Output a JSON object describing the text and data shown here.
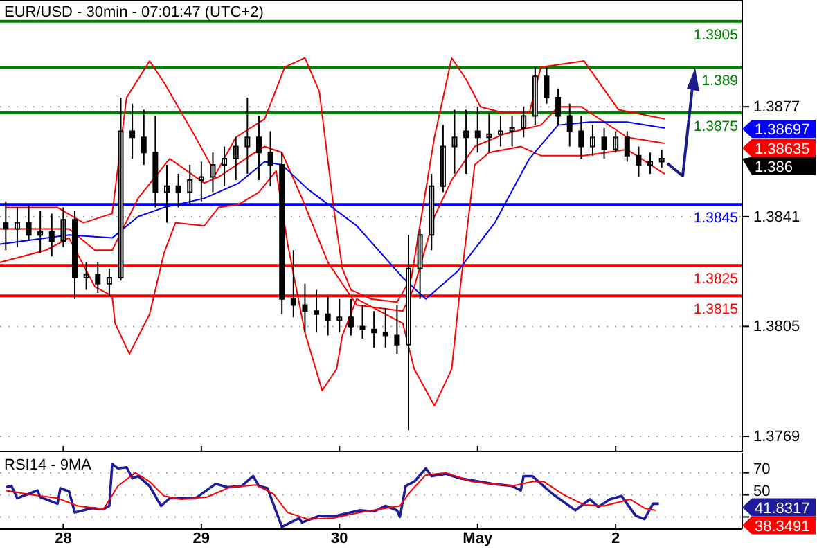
{
  "chart_data": [
    {
      "type": "candlestick",
      "title": "EUR/USD - 30min - 07:01:47 (UTC+2)",
      "grid": "y",
      "tick_labels": "y",
      "xlim": [
        "--04-27T13:00",
        "--05-02T22:00"
      ],
      "xticks": [
        {
          "value": "--04-28",
          "label": null
        },
        {
          "value": "--04-29",
          "label": null
        },
        {
          "value": "--04-30",
          "label": null
        },
        {
          "value": "--05-01",
          "label": null
        },
        {
          "value": "--05-02",
          "label": null
        }
      ],
      "ylim": [
        1.3764,
        1.3912
      ],
      "yticks": [
        1.3769,
        1.3805,
        1.3841,
        1.3877,
        1.38697,
        1.38635,
        1.386
      ],
      "x": [
        "--04-27T14:00",
        "--04-27T16:00",
        "--04-27T18:00",
        "--04-27T20:00",
        "--04-27T22:00",
        "--04-28T00:00",
        "--04-28T02:00",
        "--04-28T04:00",
        "--04-28T06:00",
        "--04-28T08:00",
        "--04-28T10:00",
        "--04-28T12:00",
        "--04-28T14:00",
        "--04-28T16:00",
        "--04-28T18:00",
        "--04-28T20:00",
        "--04-28T22:00",
        "--04-29T00:00",
        "--04-29T02:00",
        "--04-29T04:00",
        "--04-29T06:00",
        "--04-29T08:00",
        "--04-29T10:00",
        "--04-29T12:00",
        "--04-29T14:00",
        "--04-29T16:00",
        "--04-29T18:00",
        "--04-29T20:00",
        "--04-29T22:00",
        "--04-30T00:00",
        "--04-30T02:00",
        "--04-30T04:00",
        "--04-30T06:00",
        "--04-30T08:00",
        "--04-30T10:00",
        "--04-30T12:00",
        "--04-30T14:00",
        "--04-30T16:00",
        "--04-30T18:00",
        "--04-30T20:00",
        "--04-30T22:00",
        "--05-01T00:00",
        "--05-01T02:00",
        "--05-01T04:00",
        "--05-01T06:00",
        "--05-01T08:00",
        "--05-01T10:00",
        "--05-01T12:00",
        "--05-01T14:00",
        "--05-01T16:00",
        "--05-01T18:00",
        "--05-01T20:00",
        "--05-01T22:00",
        "--05-02T00:00",
        "--05-02T02:00",
        "--05-02T04:00",
        "--05-02T06:00",
        "--05-02T08:00"
      ],
      "ohlc": [
        [
          1.3839,
          1.3846,
          1.383,
          1.3837
        ],
        [
          1.3837,
          1.3844,
          1.3831,
          1.3839
        ],
        [
          1.3839,
          1.3845,
          1.3833,
          1.3835
        ],
        [
          1.3835,
          1.3843,
          1.3829,
          1.3836
        ],
        [
          1.3836,
          1.3842,
          1.3828,
          1.3833
        ],
        [
          1.3833,
          1.3844,
          1.3831,
          1.384
        ],
        [
          1.384,
          1.3843,
          1.3814,
          1.3821
        ],
        [
          1.3821,
          1.3826,
          1.3817,
          1.3822
        ],
        [
          1.3822,
          1.3826,
          1.3816,
          1.3819
        ],
        [
          1.3819,
          1.3824,
          1.3815,
          1.3821
        ],
        [
          1.3821,
          1.388,
          1.382,
          1.3869
        ],
        [
          1.3869,
          1.3878,
          1.386,
          1.3867
        ],
        [
          1.3867,
          1.3876,
          1.3858,
          1.3862
        ],
        [
          1.3862,
          1.3874,
          1.3844,
          1.3849
        ],
        [
          1.3849,
          1.3858,
          1.3839,
          1.3851
        ],
        [
          1.3851,
          1.3855,
          1.3844,
          1.3849
        ],
        [
          1.3849,
          1.3858,
          1.3845,
          1.3853
        ],
        [
          1.3853,
          1.3859,
          1.3846,
          1.3854
        ],
        [
          1.3854,
          1.3862,
          1.3849,
          1.3858
        ],
        [
          1.3858,
          1.3864,
          1.3851,
          1.386
        ],
        [
          1.386,
          1.3867,
          1.3853,
          1.3864
        ],
        [
          1.3864,
          1.388,
          1.3855,
          1.3867
        ],
        [
          1.3867,
          1.3874,
          1.3853,
          1.3862
        ],
        [
          1.3862,
          1.3869,
          1.3851,
          1.3858
        ],
        [
          1.3858,
          1.3862,
          1.3809,
          1.3814
        ],
        [
          1.3814,
          1.383,
          1.3808,
          1.3812
        ],
        [
          1.3812,
          1.3819,
          1.3803,
          1.381
        ],
        [
          1.381,
          1.3817,
          1.3803,
          1.3809
        ],
        [
          1.3809,
          1.3815,
          1.3802,
          1.3807
        ],
        [
          1.3807,
          1.3814,
          1.3803,
          1.3808
        ],
        [
          1.3808,
          1.3814,
          1.3802,
          1.3805
        ],
        [
          1.3805,
          1.3812,
          1.3801,
          1.3804
        ],
        [
          1.3804,
          1.381,
          1.3798,
          1.3803
        ],
        [
          1.3803,
          1.3811,
          1.3798,
          1.3802
        ],
        [
          1.3802,
          1.3812,
          1.3796,
          1.3799
        ],
        [
          1.3799,
          1.3835,
          1.3771,
          1.3824
        ],
        [
          1.3824,
          1.3837,
          1.3814,
          1.3835
        ],
        [
          1.3835,
          1.3855,
          1.383,
          1.3851
        ],
        [
          1.3851,
          1.3871,
          1.3849,
          1.3864
        ],
        [
          1.3864,
          1.3876,
          1.3855,
          1.3867
        ],
        [
          1.3867,
          1.3876,
          1.3855,
          1.3869
        ],
        [
          1.3869,
          1.3877,
          1.3862,
          1.3867
        ],
        [
          1.3867,
          1.3875,
          1.3862,
          1.3868
        ],
        [
          1.3868,
          1.3874,
          1.3864,
          1.3869
        ],
        [
          1.3869,
          1.3874,
          1.3864,
          1.387
        ],
        [
          1.387,
          1.3877,
          1.3867,
          1.3874
        ],
        [
          1.3874,
          1.389,
          1.3871,
          1.3887
        ],
        [
          1.3887,
          1.389,
          1.3878,
          1.388
        ],
        [
          1.388,
          1.3883,
          1.3871,
          1.3874
        ],
        [
          1.3874,
          1.3878,
          1.3864,
          1.3869
        ],
        [
          1.3869,
          1.3874,
          1.386,
          1.3864
        ],
        [
          1.3864,
          1.3871,
          1.3861,
          1.3867
        ],
        [
          1.3867,
          1.387,
          1.386,
          1.3863
        ],
        [
          1.3863,
          1.3869,
          1.3862,
          1.3867
        ],
        [
          1.3867,
          1.3869,
          1.3859,
          1.3861
        ],
        [
          1.3861,
          1.3864,
          1.3854,
          1.3858
        ],
        [
          1.3858,
          1.3862,
          1.3855,
          1.3859
        ],
        [
          1.3859,
          1.3863,
          1.3857,
          1.386
        ]
      ],
      "series": [
        {
          "type": "line",
          "color": "#ff0000",
          "x": [
            "--04-27T14:00",
            "--04-27T23:00",
            "--04-28T03:30",
            "--04-28T08:30",
            "--04-28T11:00",
            "--04-28T15:00",
            "--04-28T17:30",
            "--04-28T23:00",
            "--04-29T02:30",
            "--04-29T06:00",
            "--04-29T11:00",
            "--04-29T14:30",
            "--04-29T18:00",
            "--04-29T20:30",
            "--04-29T23:00",
            "--04-30T00:30",
            "--04-30T02:00",
            "--04-30T05:30",
            "--04-30T10:00",
            "--04-30T12:30",
            "--04-30T16:30",
            "--04-30T19:30",
            "--04-30T22:00",
            "--05-01T00:30",
            "--05-01T04:30",
            "--05-01T09:00",
            "--05-01T11:00",
            "--05-01T18:30",
            "--05-02T00:30",
            "--05-02T08:30"
          ],
          "values": [
            1.3844,
            1.3844,
            1.3839,
            1.3842,
            1.388,
            1.3892,
            1.3885,
            1.3867,
            1.3855,
            1.3867,
            1.3873,
            1.389,
            1.3893,
            1.3882,
            1.3844,
            1.3824,
            1.3817,
            1.3814,
            1.3813,
            1.3821,
            1.3867,
            1.3893,
            1.3886,
            1.3877,
            1.3875,
            1.3875,
            1.389,
            1.3892,
            1.3876,
            1.3873
          ]
        },
        {
          "type": "line",
          "color": "#ff0000",
          "x": [
            "--04-27T13:00",
            "--04-28T01:00",
            "--04-28T05:30",
            "--04-28T08:30",
            "--04-28T13:00",
            "--04-28T18:30",
            "--04-29T00:30",
            "--04-29T03:00",
            "--04-29T08:30",
            "--04-29T11:00",
            "--04-29T14:00",
            "--04-29T17:30",
            "--04-29T22:00",
            "--04-30T03:00",
            "--04-30T11:00",
            "--04-30T13:00",
            "--04-30T16:30",
            "--04-30T19:30",
            "--04-30T23:30",
            "--05-01T04:30",
            "--05-01T11:00",
            "--05-01T14:00",
            "--05-01T18:00",
            "--05-02T02:00",
            "--05-02T08:30"
          ],
          "values": [
            1.3837,
            1.3837,
            1.383,
            1.383,
            1.3847,
            1.386,
            1.3852,
            1.3854,
            1.3861,
            1.3864,
            1.3862,
            1.3847,
            1.3826,
            1.3812,
            1.381,
            1.3818,
            1.3841,
            1.3853,
            1.3864,
            1.3868,
            1.3871,
            1.3877,
            1.3877,
            1.3867,
            1.3865
          ]
        },
        {
          "type": "line",
          "color": "#ff0000",
          "x": [
            "--04-27T13:00",
            "--04-27T21:00",
            "--04-28T01:00",
            "--04-28T05:30",
            "--04-28T08:30",
            "--04-28T09:00",
            "--04-28T11:30",
            "--04-28T15:00",
            "--04-28T17:30",
            "--04-28T19:30",
            "--04-29T00:30",
            "--04-29T03:00",
            "--04-29T06:30",
            "--04-29T10:00",
            "--04-29T13:00",
            "--04-29T15:00",
            "--04-29T18:00",
            "--04-29T21:00",
            "--04-29T23:30",
            "--04-30T00:30",
            "--04-30T03:00",
            "--04-30T11:00",
            "--04-30T13:00",
            "--04-30T16:30",
            "--04-30T19:30",
            "--04-30T21:00",
            "--04-30T23:30",
            "--05-01T02:00",
            "--05-01T07:30",
            "--05-01T11:00",
            "--05-01T18:30",
            "--05-02T02:00",
            "--05-02T08:30"
          ],
          "values": [
            1.3826,
            1.383,
            1.3834,
            1.3818,
            1.3815,
            1.3806,
            1.3796,
            1.3809,
            1.3829,
            1.3839,
            1.3838,
            1.3844,
            1.3845,
            1.3849,
            1.3856,
            1.3832,
            1.3803,
            1.3784,
            1.3791,
            1.3802,
            1.3814,
            1.3806,
            1.3791,
            1.3779,
            1.3791,
            1.3818,
            1.3858,
            1.3862,
            1.3864,
            1.3861,
            1.3861,
            1.3863,
            1.3855
          ]
        },
        {
          "type": "line",
          "color": "#0000ff",
          "x": [
            "--04-27T13:00",
            "--04-28T01:00",
            "--04-28T08:30",
            "--04-28T13:00",
            "--04-28T17:30",
            "--04-29T00:30",
            "--04-29T06:30",
            "--04-29T11:00",
            "--04-29T14:00",
            "--04-29T18:30",
            "--04-30T03:00",
            "--04-30T11:00",
            "--04-30T15:00",
            "--04-30T20:30",
            "--05-01T03:00",
            "--05-01T09:00",
            "--05-01T14:00",
            "--05-01T19:30",
            "--05-02T02:00",
            "--05-02T08:30"
          ],
          "values": [
            1.3832,
            1.3835,
            1.3834,
            1.3841,
            1.3844,
            1.3847,
            1.3852,
            1.3859,
            1.3858,
            1.385,
            1.3838,
            1.3821,
            1.3814,
            1.3823,
            1.3839,
            1.386,
            1.3871,
            1.3872,
            1.3872,
            1.387
          ]
        }
      ],
      "ref_lines": [
        {
          "axis": "y",
          "value": 1.3905,
          "label": "1.3905",
          "color": "#008000"
        },
        {
          "axis": "y",
          "value": 1.389,
          "label": "1.389",
          "color": "#008000"
        },
        {
          "axis": "y",
          "value": 1.3875,
          "label": "1.3875",
          "color": "#008000"
        },
        {
          "axis": "y",
          "value": 1.3845,
          "label": "1.3845",
          "color": "#0000ff"
        },
        {
          "axis": "y",
          "value": 1.3825,
          "label": "1.3825",
          "color": "#ff0000"
        },
        {
          "axis": "y",
          "value": 1.3815,
          "label": "1.3815",
          "color": "#ff0000"
        }
      ]
    },
    {
      "type": "line",
      "title": "RSI14 - 9MA",
      "grid": "y",
      "xlim": [
        "--04-27T13:00",
        "--05-02T22:00"
      ],
      "xticks": [
        {
          "value": "--04-28",
          "label": "28"
        },
        {
          "value": "--04-29",
          "label": "29"
        },
        {
          "value": "--04-30",
          "label": "30"
        },
        {
          "value": "--05-01",
          "label": "May"
        },
        {
          "value": "--05-02",
          "label": "2"
        }
      ],
      "ylim": [
        19,
        88
      ],
      "yticks": [
        {
          "value": 30,
          "label": null
        },
        50,
        70
      ],
      "annotations": [
        "41.8317",
        "38.3491"
      ],
      "series": [
        {
          "color": "#1c1c9c",
          "x": [
            "--04-27T14:00",
            "--04-27T15:00",
            "--04-27T16:00",
            "--04-27T19:30",
            "--04-27T20:00",
            "--04-27T23:00",
            "--04-27T23:30",
            "--04-28T01:00",
            "--04-28T02:00",
            "--04-28T05:00",
            "--04-28T07:00",
            "--04-28T08:00",
            "--04-28T08:30",
            "--04-28T09:30",
            "--04-28T11:00",
            "--04-28T12:00",
            "--04-28T13:00",
            "--04-28T15:00",
            "--04-28T17:00",
            "--04-28T18:30",
            "--04-28T20:00",
            "--04-28T23:00",
            "--04-29T02:30",
            "--04-29T04:30",
            "--04-29T07:00",
            "--04-29T09:00",
            "--04-29T10:00",
            "--04-29T11:30",
            "--04-29T14:00",
            "--04-29T17:00",
            "--04-29T17:30",
            "--04-29T20:30",
            "--04-29T23:30",
            "--04-30T03:30",
            "--04-30T06:00",
            "--04-30T08:00",
            "--04-30T10:00",
            "--04-30T10:30",
            "--04-30T11:30",
            "--04-30T13:00",
            "--04-30T15:00",
            "--04-30T16:00",
            "--04-30T18:30",
            "--04-30T21:00",
            "--05-01T02:30",
            "--05-01T06:00",
            "--05-01T07:30",
            "--05-01T08:00",
            "--05-01T09:30",
            "--05-01T13:00",
            "--05-01T17:00",
            "--05-01T19:30",
            "--05-01T21:00",
            "--05-01T23:00",
            "--05-02T01:00",
            "--05-02T03:30",
            "--05-02T05:00",
            "--05-02T06:30",
            "--05-02T07:30"
          ],
          "values": [
            57,
            58,
            47,
            54,
            48,
            42,
            56,
            53,
            34,
            38,
            37,
            40,
            78,
            74,
            75,
            65,
            67,
            58,
            40,
            47,
            47,
            47,
            60,
            57,
            58,
            67,
            58,
            56,
            21,
            29,
            25,
            31,
            31,
            36,
            35,
            40,
            36,
            30,
            58,
            62,
            74,
            67,
            69,
            65,
            60,
            58,
            54,
            67,
            67,
            51,
            36,
            46,
            39,
            46,
            49,
            31,
            28,
            42,
            42
          ]
        },
        {
          "color": "#ff0000",
          "x": [
            "--04-27T14:00",
            "--04-27T18:30",
            "--04-27T23:00",
            "--04-28T02:30",
            "--04-28T07:00",
            "--04-28T09:30",
            "--04-28T12:30",
            "--04-28T15:00",
            "--04-28T17:30",
            "--04-28T20:30",
            "--04-29T01:00",
            "--04-29T05:00",
            "--04-29T09:30",
            "--04-29T12:30",
            "--04-29T15:00",
            "--04-29T18:30",
            "--04-29T23:00",
            "--04-30T03:30",
            "--04-30T10:30",
            "--04-30T12:30",
            "--04-30T15:00",
            "--04-30T18:30",
            "--04-30T23:00",
            "--05-01T06:00",
            "--05-01T09:30",
            "--05-01T11:30",
            "--05-01T15:00",
            "--05-01T18:30",
            "--05-01T22:00",
            "--05-02T02:30",
            "--05-02T05:00",
            "--05-02T07:00"
          ],
          "values": [
            54,
            50,
            47,
            40,
            37,
            58,
            70,
            62,
            49,
            46,
            48,
            57,
            59,
            51,
            34,
            28,
            29,
            34,
            40,
            54,
            68,
            70,
            62,
            58,
            62,
            62,
            50,
            41,
            40,
            46,
            38,
            36
          ]
        }
      ]
    }
  ]
}
